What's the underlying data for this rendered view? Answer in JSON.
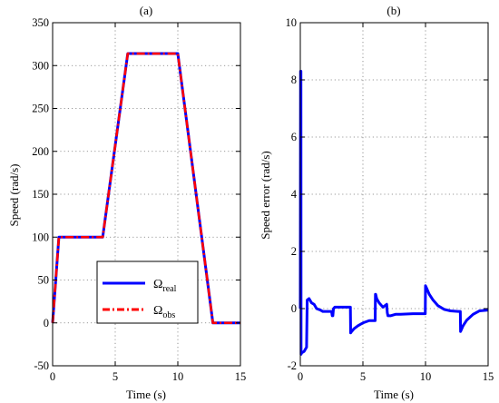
{
  "chart_data": [
    {
      "type": "line",
      "title": "(a)",
      "xlabel": "Time (s)",
      "ylabel": "Speed  (rad/s)",
      "xlim": [
        0,
        15
      ],
      "ylim": [
        -50,
        350
      ],
      "xticks": [
        0,
        5,
        10,
        15
      ],
      "yticks": [
        -50,
        0,
        50,
        100,
        150,
        200,
        250,
        300,
        350
      ],
      "grid": true,
      "legend_position": "lower-center",
      "series": [
        {
          "name": "Ω",
          "name_sub": "real",
          "color": "#0000ff",
          "style": "solid",
          "x": [
            0,
            0.5,
            4.0,
            6.0,
            10.0,
            12.8,
            15.0
          ],
          "y": [
            0,
            100,
            100,
            314,
            314,
            0,
            0
          ]
        },
        {
          "name": "Ω",
          "name_sub": "obs",
          "color": "#ff0000",
          "style": "dash-dot",
          "x": [
            0,
            0.5,
            4.0,
            6.0,
            10.0,
            12.8,
            15.0
          ],
          "y": [
            0,
            100,
            100,
            314,
            314,
            0,
            0
          ]
        }
      ]
    },
    {
      "type": "line",
      "title": "(b)",
      "xlabel": "Time (s)",
      "ylabel": "Speed error  (rad/s)",
      "xlim": [
        0,
        15
      ],
      "ylim": [
        -2,
        10
      ],
      "xticks": [
        0,
        5,
        10,
        15
      ],
      "yticks": [
        -2,
        0,
        2,
        4,
        6,
        8,
        10
      ],
      "grid": true,
      "series": [
        {
          "color": "#0000ff",
          "style": "solid",
          "x": [
            0,
            0.02,
            0.05,
            0.06,
            0.1,
            0.3,
            0.5,
            0.55,
            0.7,
            0.9,
            1.1,
            1.3,
            1.6,
            1.8,
            2.2,
            2.5,
            2.55,
            2.6,
            2.65,
            2.75,
            3.0,
            3.4,
            4.0,
            4.02,
            4.1,
            4.3,
            4.6,
            5.0,
            5.5,
            5.98,
            6.0,
            6.02,
            6.1,
            6.3,
            6.6,
            6.9,
            6.95,
            7.0,
            7.2,
            7.6,
            8.0,
            9.0,
            9.98,
            10.0,
            10.05,
            10.3,
            10.6,
            11.0,
            11.5,
            12.0,
            12.6,
            12.78,
            12.8,
            12.85,
            13.0,
            13.3,
            13.8,
            14.3,
            15.0
          ],
          "y": [
            0,
            8.3,
            8.3,
            -1.6,
            -1.55,
            -1.5,
            -1.35,
            0.3,
            0.35,
            0.2,
            0.15,
            0.0,
            -0.05,
            -0.1,
            -0.1,
            -0.1,
            -0.25,
            -0.25,
            0.0,
            0.05,
            0.05,
            0.05,
            0.05,
            -0.85,
            -0.8,
            -0.7,
            -0.6,
            -0.5,
            -0.42,
            -0.42,
            0.5,
            0.5,
            0.35,
            0.2,
            0.05,
            0.15,
            -0.15,
            -0.25,
            -0.25,
            -0.2,
            -0.2,
            -0.18,
            -0.18,
            0.8,
            0.75,
            0.5,
            0.3,
            0.1,
            -0.03,
            -0.08,
            -0.1,
            -0.1,
            -0.8,
            -0.75,
            -0.6,
            -0.4,
            -0.2,
            -0.08,
            -0.05
          ]
        }
      ]
    }
  ]
}
